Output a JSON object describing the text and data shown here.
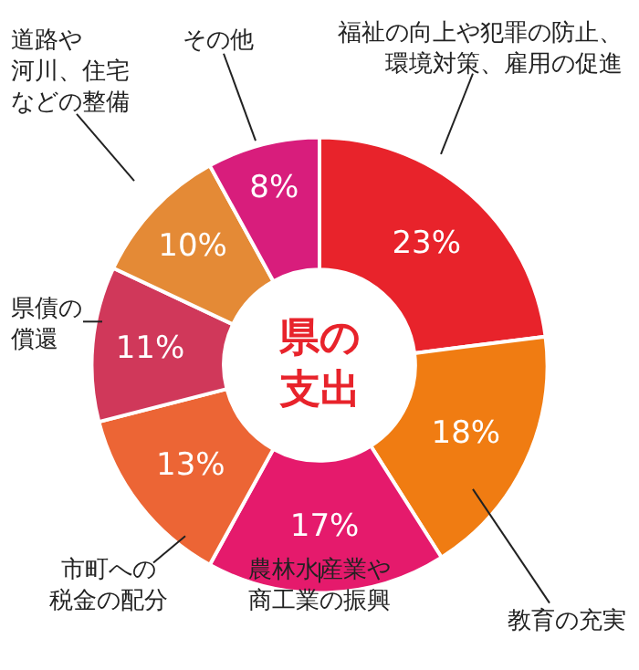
{
  "chart_data": {
    "type": "donut",
    "title": "県の支出",
    "categories": [
      "福祉の向上や犯罪の防止、環境対策、雇用の促進",
      "教育の充実",
      "農林水産業や商工業の振興",
      "市町への税金の配分",
      "県債の償還",
      "道路や河川、住宅などの整備",
      "その他"
    ],
    "values": [
      23,
      18,
      17,
      13,
      11,
      10,
      8
    ],
    "colors": [
      "#e8232b",
      "#f07c12",
      "#e51a6c",
      "#ec6535",
      "#d0385a",
      "#e48a36",
      "#d81d7c"
    ],
    "value_labels": [
      "23%",
      "18%",
      "17%",
      "13%",
      "11%",
      "10%",
      "8%"
    ],
    "legend": false
  }
}
